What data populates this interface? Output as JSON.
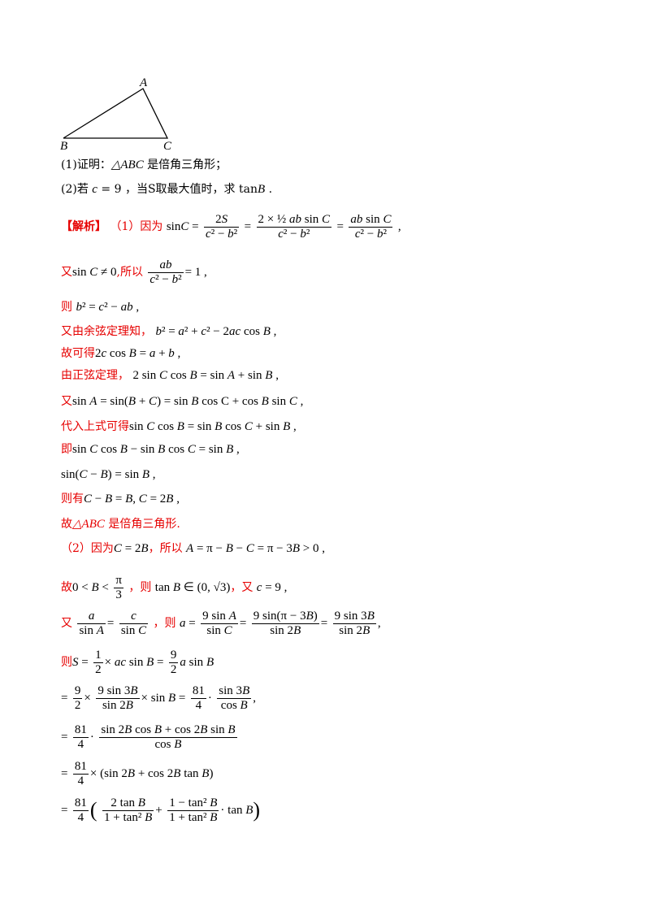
{
  "figure": {
    "vertices": [
      "A",
      "B",
      "C"
    ]
  },
  "problem": {
    "q1": "(1)证明：△ABC 是倍角三角形；",
    "q2": "(2)若 c = 9 ，当S取最大值时，求 tanB ."
  },
  "solution": {
    "tag": "【解析】",
    "part1_intro": "（1）因为",
    "part1_formula": "sinC = 2S/(c² − b²) = (2×½ab sinC)/(c² − b²) = ab sinC/(c² − b²) ,",
    "l2_prefix": "又",
    "l2_math": "sin C ≠ 0",
    "l2_mid": ",所以",
    "l2_math2": "ab/(c² − b²) = 1 ,",
    "l3_prefix": "则",
    "l3_math": "b² = c² − ab ,",
    "l4_prefix": "又由余弦定理知，",
    "l4_math": "b² = a² + c² − 2ac cos B ,",
    "l5_prefix": "故可得",
    "l5_math": "2c cos B = a + b ,",
    "l6_prefix": "由正弦定理，",
    "l6_math": "2 sin C cos B = sin A + sin B ,",
    "l7_prefix": "又",
    "l7_math": "sin A = sin(B + C) = sin B cos C + cos B sin C ,",
    "l8_prefix": "代入上式可得",
    "l8_math": "sin C cos B = sin B cos C + sin B ,",
    "l9_prefix": "即",
    "l9_math": "sin C cos B − sin B cos C = sin B ,",
    "l10_math": "sin(C − B) = sin B ,",
    "l11_prefix": "则有",
    "l11_math": "C − B = B, C = 2B ,",
    "l12": "故△ABC 是倍角三角形.",
    "p2_intro": "（2）因为",
    "p2_math1": "C = 2B",
    "p2_mid": "，所以",
    "p2_math2": "A = π − B − C = π − 3B > 0 ,",
    "p2b_prefix": "故",
    "p2b_math1": "0 < B < π/3",
    "p2b_mid": "，则",
    "p2b_math2": "tan B ∈ (0, √3)",
    "p2b_mid2": "，又",
    "p2b_math3": "c = 9 ,",
    "p2c_prefix": "又",
    "p2c_math1": "a/sin A = c/sin C",
    "p2c_mid": "，则",
    "p2c_math2": "a = 9sin A/sin C = 9sin(π − 3B)/sin 2B = 9sin 3B/sin 2B ,",
    "p2d_prefix": "则",
    "p2d_math": "S = ½ × ac sin B = 9/2 a sin B",
    "p2e_math": "= 9/2 × 9sin 3B/sin 2B × sin B = 81/4 · sin 3B/cos B ,",
    "p2f_math": "= 81/4 · (sin 2B cos B + cos 2B sin B)/cos B",
    "p2g_math": "= 81/4 × (sin 2B + cos 2B tan B)",
    "p2h_math": "= 81/4 ( 2tan B/(1 + tan² B) + (1 − tan² B)/(1 + tan² B) · tan B )"
  }
}
